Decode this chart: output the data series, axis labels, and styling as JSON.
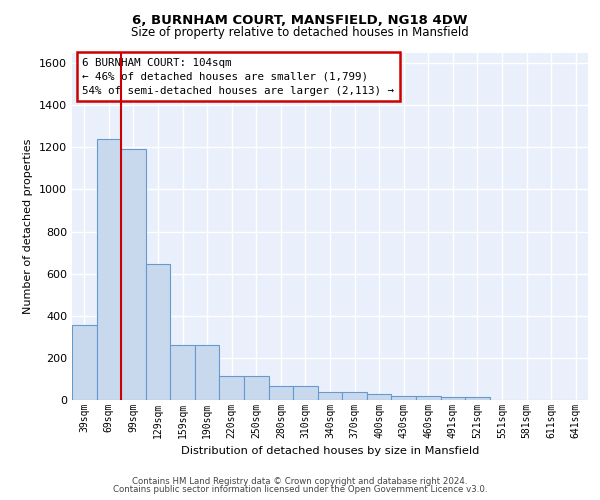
{
  "title_line1": "6, BURNHAM COURT, MANSFIELD, NG18 4DW",
  "title_line2": "Size of property relative to detached houses in Mansfield",
  "xlabel": "Distribution of detached houses by size in Mansfield",
  "ylabel": "Number of detached properties",
  "categories": [
    "39sqm",
    "69sqm",
    "99sqm",
    "129sqm",
    "159sqm",
    "190sqm",
    "220sqm",
    "250sqm",
    "280sqm",
    "310sqm",
    "340sqm",
    "370sqm",
    "400sqm",
    "430sqm",
    "460sqm",
    "491sqm",
    "521sqm",
    "551sqm",
    "581sqm",
    "611sqm",
    "641sqm"
  ],
  "values": [
    355,
    1237,
    1193,
    645,
    260,
    260,
    113,
    113,
    67,
    67,
    38,
    38,
    28,
    18,
    18,
    14,
    14,
    0,
    0,
    0,
    0
  ],
  "bar_color": "#c8d9ee",
  "bar_edge_color": "#6699cc",
  "vline_color": "#cc0000",
  "vline_x_idx": 2,
  "annotation_box_color": "#cc0000",
  "marker_label": "6 BURNHAM COURT: 104sqm",
  "pct_smaller": "46% of detached houses are smaller (1,799)",
  "pct_larger": "54% of semi-detached houses are larger (2,113)",
  "ylim": [
    0,
    1650
  ],
  "yticks": [
    0,
    200,
    400,
    600,
    800,
    1000,
    1200,
    1400,
    1600
  ],
  "background_color": "#eaf0fb",
  "grid_color": "#ffffff",
  "footer_line1": "Contains HM Land Registry data © Crown copyright and database right 2024.",
  "footer_line2": "Contains public sector information licensed under the Open Government Licence v3.0."
}
